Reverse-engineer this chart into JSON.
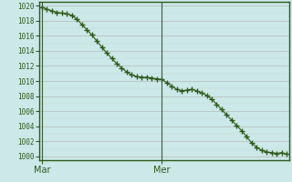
{
  "background_color": "#cce8e8",
  "plot_bg_color": "#cce8e8",
  "line_color": "#2d5a1b",
  "marker_color": "#2d5a1b",
  "ylabel_values": [
    1000,
    1002,
    1004,
    1006,
    1008,
    1010,
    1012,
    1014,
    1016,
    1018,
    1020
  ],
  "ylim": [
    999.5,
    1020.5
  ],
  "xtick_labels": [
    "Mar",
    "Mer"
  ],
  "xtick_positions": [
    0,
    24
  ],
  "vline_positions": [
    0,
    24
  ],
  "y_values": [
    1019.8,
    1019.5,
    1019.3,
    1019.1,
    1019.0,
    1018.9,
    1018.7,
    1018.2,
    1017.5,
    1016.8,
    1016.1,
    1015.3,
    1014.5,
    1013.7,
    1013.0,
    1012.3,
    1011.7,
    1011.2,
    1010.8,
    1010.6,
    1010.5,
    1010.5,
    1010.4,
    1010.3,
    1010.2,
    1009.8,
    1009.3,
    1008.9,
    1008.7,
    1008.8,
    1008.9,
    1008.7,
    1008.4,
    1008.1,
    1007.6,
    1006.9,
    1006.2,
    1005.5,
    1004.8,
    1004.1,
    1003.4,
    1002.6,
    1001.8,
    1001.2,
    1000.8,
    1000.6,
    1000.5,
    1000.4,
    1000.5,
    1000.3
  ]
}
